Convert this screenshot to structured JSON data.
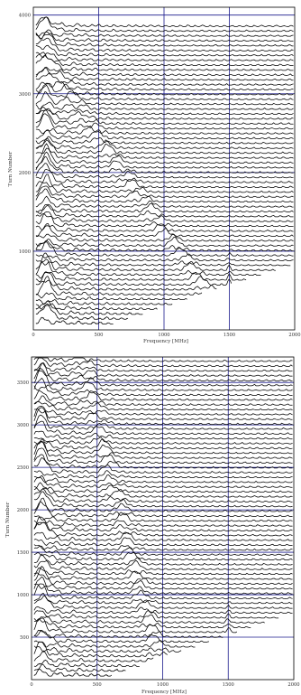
{
  "chart_data": [
    {
      "type": "line",
      "subtype": "waterfall",
      "xlabel": "Frequency  [MHz]",
      "ylabel": "Turn Number",
      "xlim": [
        0,
        2000
      ],
      "ylim": [
        0,
        4100
      ],
      "xticks": [
        "0",
        "500",
        "1000",
        "1500",
        "2000"
      ],
      "yticks": [
        "1000",
        "2000",
        "3000",
        "4000"
      ],
      "ytick_values": [
        1000,
        2000,
        3000,
        4000
      ],
      "grid": true,
      "series_count": 62,
      "baseline_start_turn": 50,
      "baseline_step_turns": 62,
      "trace_span_turns": 3770,
      "features": [
        {
          "description": "main peak near 100 MHz",
          "freq_mhz": 100
        },
        {
          "description": "diagonal ridge drifting toward 1500 MHz",
          "freq_start_mhz": 200,
          "freq_end_mhz": 1500
        },
        {
          "description": "feature at 1500 MHz around turn 550",
          "freq_mhz": 1500
        }
      ],
      "colors": {
        "trace": "#000000",
        "grid": "#1a1a8c",
        "frame": "#000000"
      }
    },
    {
      "type": "line",
      "subtype": "waterfall",
      "xlabel": "Frequency  [MHz]",
      "ylabel": "Turn Number",
      "xlim": [
        0,
        2000
      ],
      "ylim": [
        0,
        3800
      ],
      "xticks": [
        "0",
        "500",
        "1000",
        "1500",
        "2000"
      ],
      "yticks": [
        "500",
        "1000",
        "1500",
        "2000",
        "2500",
        "3000",
        "3500"
      ],
      "ytick_values": [
        500,
        1000,
        1500,
        2000,
        2500,
        3000,
        3500
      ],
      "grid": true,
      "series_count": 66,
      "baseline_start_turn": 20,
      "baseline_step_turns": 57,
      "trace_span_turns": 3780,
      "features": [
        {
          "description": "main peak near 80 MHz",
          "freq_mhz": 80
        },
        {
          "description": "diagonal ridge drifting toward 1000 MHz",
          "freq_start_mhz": 200,
          "freq_end_mhz": 1000
        },
        {
          "description": "feature at 1500 MHz around turn 500",
          "freq_mhz": 1500
        }
      ],
      "colors": {
        "trace": "#000000",
        "grid": "#1a1a8c",
        "frame": "#000000"
      }
    }
  ]
}
